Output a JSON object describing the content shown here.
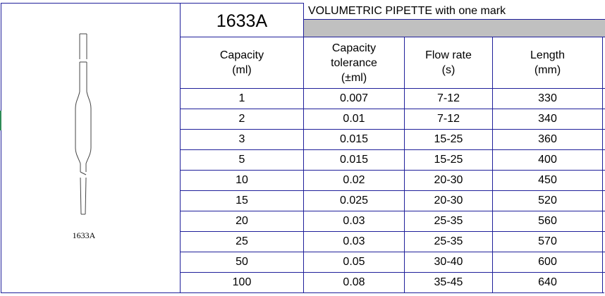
{
  "product": {
    "code": "1633A",
    "title": "VOLUMETRIC PIPETTE with one mark",
    "image_caption": "1633A",
    "image_icon": "volumetric-pipette-drawing"
  },
  "table": {
    "headers": {
      "capacity": [
        "Capacity",
        "(ml)"
      ],
      "tolerance": [
        "Capacity",
        "tolerance",
        "(±ml)"
      ],
      "flow_rate": [
        "Flow rate",
        "(s)"
      ],
      "length": [
        "Length",
        "(mm)"
      ]
    },
    "rows": [
      {
        "capacity": "1",
        "tolerance": "0.007",
        "flow_rate": "7-12",
        "length": "330"
      },
      {
        "capacity": "2",
        "tolerance": "0.01",
        "flow_rate": "7-12",
        "length": "340"
      },
      {
        "capacity": "3",
        "tolerance": "0.015",
        "flow_rate": "15-25",
        "length": "360"
      },
      {
        "capacity": "5",
        "tolerance": "0.015",
        "flow_rate": "15-25",
        "length": "400"
      },
      {
        "capacity": "10",
        "tolerance": "0.02",
        "flow_rate": "20-30",
        "length": "450"
      },
      {
        "capacity": "15",
        "tolerance": "0.025",
        "flow_rate": "20-30",
        "length": "520"
      },
      {
        "capacity": "20",
        "tolerance": "0.03",
        "flow_rate": "25-35",
        "length": "560"
      },
      {
        "capacity": "25",
        "tolerance": "0.03",
        "flow_rate": "25-35",
        "length": "570"
      },
      {
        "capacity": "50",
        "tolerance": "0.05",
        "flow_rate": "30-40",
        "length": "600"
      },
      {
        "capacity": "100",
        "tolerance": "0.08",
        "flow_rate": "35-45",
        "length": "640"
      }
    ]
  },
  "colors": {
    "grid": "#1f1f9a",
    "title_bar_fill": "#c0c0c0",
    "left_marker": "#2e8b57"
  }
}
